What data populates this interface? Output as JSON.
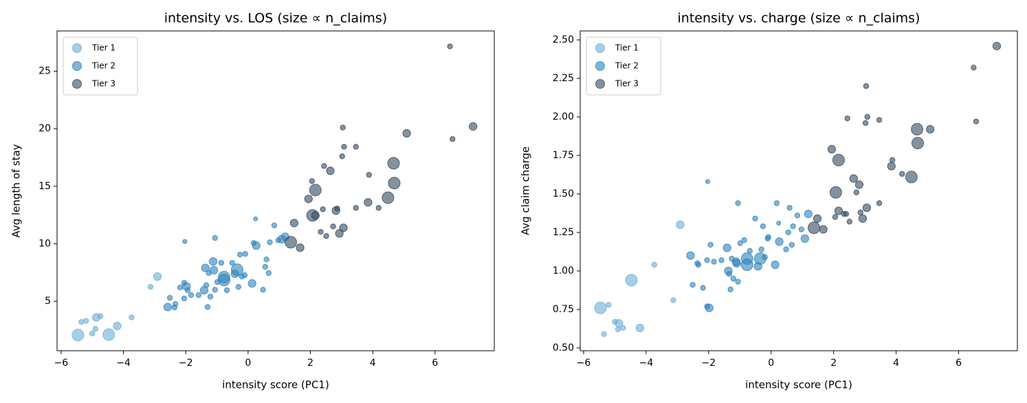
{
  "chart_data": [
    {
      "type": "scatter",
      "title": "intensity vs. LOS (size ∝ n_claims)",
      "xlabel": "intensity score (PC1)",
      "ylabel": "Avg length of stay",
      "xlim": [
        -6.13,
        7.9
      ],
      "ylim": [
        0.7,
        28.5
      ],
      "xticks": [
        {
          "value": -6,
          "label": "−6"
        },
        {
          "value": -4,
          "label": "−4"
        },
        {
          "value": -2,
          "label": "−2"
        },
        0,
        2,
        4,
        6
      ],
      "yticks": [
        5,
        10,
        15,
        20,
        25
      ],
      "legend": "upper left",
      "series": [
        {
          "name": "Tier 1",
          "color": "#6baed6",
          "x": [
            -5.46,
            -5.35,
            -5.2,
            -5.0,
            -4.9,
            -4.87,
            -4.74,
            -4.47,
            -4.2,
            -3.74,
            -3.13,
            -2.91
          ],
          "values": [
            2.07,
            3.2,
            3.3,
            2.2,
            2.6,
            3.6,
            3.7,
            2.1,
            2.85,
            3.6,
            6.25,
            7.15
          ],
          "sizes": [
            80,
            15,
            15,
            15,
            15,
            35,
            15,
            80,
            35,
            15,
            15,
            35
          ]
        },
        {
          "name": "Tier 2",
          "color": "#3182bd",
          "x": [
            -2.58,
            -2.51,
            -2.36,
            -2.33,
            -2.18,
            -2.05,
            -2.05,
            -2.03,
            -1.98,
            -1.94,
            -1.83,
            -1.59,
            -1.41,
            -1.37,
            -1.34,
            -1.3,
            -1.26,
            -1.21,
            -1.12,
            -1.1,
            -1.06,
            -1.06,
            -0.99,
            -0.86,
            -0.77,
            -0.77,
            -0.68,
            -0.51,
            -0.42,
            -0.35,
            -0.31,
            -0.26,
            -0.2,
            -0.11,
            -0.09,
            0.13,
            0.18,
            0.26,
            0.24,
            0.48,
            0.55,
            0.59,
            0.66,
            0.7,
            0.84,
            0.97,
            1.08,
            1.19
          ],
          "values": [
            4.5,
            5.3,
            4.46,
            4.76,
            6.2,
            6.6,
            5.24,
            10.2,
            6.3,
            5.96,
            5.54,
            5.54,
            5.96,
            7.9,
            6.4,
            4.5,
            7.45,
            5.4,
            8.46,
            7.7,
            10.5,
            6.0,
            6.67,
            8.34,
            7.1,
            6.85,
            5.96,
            8.34,
            7.39,
            7.75,
            6.25,
            9.06,
            7.15,
            7.27,
            9.12,
            6.55,
            10.07,
            9.84,
            12.16,
            6.0,
            7.99,
            8.64,
            7.45,
            10.13,
            11.6,
            10.3,
            10.4,
            10.6
          ],
          "sizes": [
            35,
            15,
            15,
            15,
            15,
            15,
            15,
            10,
            35,
            15,
            15,
            15,
            35,
            35,
            15,
            15,
            15,
            15,
            35,
            35,
            15,
            15,
            15,
            15,
            80,
            80,
            15,
            15,
            35,
            80,
            15,
            15,
            15,
            15,
            15,
            35,
            15,
            35,
            10,
            15,
            15,
            15,
            15,
            15,
            15,
            15,
            35,
            35
          ]
        },
        {
          "name": "Tier 3",
          "color": "#34495e",
          "x": [
            1.37,
            1.48,
            1.67,
            1.94,
            2.05,
            2.07,
            2.16,
            2.16,
            2.33,
            2.4,
            2.44,
            2.51,
            2.64,
            2.73,
            2.82,
            2.86,
            2.93,
            3.02,
            3.04,
            3.06,
            3.08,
            3.46,
            3.46,
            3.85,
            3.88,
            4.19,
            4.49,
            4.67,
            4.69,
            5.09,
            6.48,
            6.56,
            7.22
          ],
          "values": [
            10.13,
            11.8,
            9.66,
            13.9,
            15.45,
            12.46,
            14.67,
            12.46,
            11.03,
            13.0,
            16.76,
            10.67,
            16.34,
            11.5,
            12.88,
            13.06,
            10.9,
            17.6,
            20.1,
            11.39,
            18.43,
            13.12,
            18.43,
            13.6,
            15.99,
            13.12,
            14.0,
            17.0,
            15.27,
            19.6,
            27.15,
            19.1,
            20.2
          ],
          "sizes": [
            80,
            35,
            35,
            35,
            15,
            80,
            80,
            35,
            15,
            15,
            15,
            15,
            35,
            15,
            35,
            15,
            35,
            15,
            15,
            35,
            15,
            15,
            15,
            35,
            15,
            15,
            80,
            80,
            80,
            35,
            15,
            15,
            35
          ]
        }
      ]
    },
    {
      "type": "scatter",
      "title": "intensity vs. charge (size ∝ n_claims)",
      "xlabel": "intensity score (PC1)",
      "ylabel": "Avg claim charge",
      "xlim": [
        -6.11,
        7.88
      ],
      "ylim": [
        0.482,
        2.558
      ],
      "xticks": [
        {
          "value": -6,
          "label": "−6"
        },
        {
          "value": -4,
          "label": "−4"
        },
        {
          "value": -2,
          "label": "−2"
        },
        0,
        2,
        4,
        6
      ],
      "yticks": [
        {
          "value": 0.5,
          "label": "0.50"
        },
        0.75,
        {
          "value": 1.0,
          "label": "1.00"
        },
        1.25,
        {
          "value": 1.5,
          "label": "1.50"
        },
        1.75,
        {
          "value": 2.0,
          "label": "2.00"
        },
        2.25,
        {
          "value": 2.5,
          "label": "2.50"
        }
      ],
      "legend": "upper left",
      "series": [
        {
          "name": "Tier 1",
          "color": "#6baed6",
          "x": [
            -5.46,
            -5.35,
            -5.2,
            -5.0,
            -4.9,
            -4.87,
            -4.74,
            -4.47,
            -4.2,
            -3.74,
            -3.13,
            -2.91
          ],
          "values": [
            0.76,
            0.59,
            0.78,
            0.67,
            0.62,
            0.66,
            0.63,
            0.94,
            0.63,
            1.04,
            0.81,
            1.3
          ],
          "sizes": [
            80,
            15,
            15,
            15,
            15,
            35,
            15,
            80,
            35,
            15,
            15,
            35
          ]
        },
        {
          "name": "Tier 2",
          "color": "#3182bd",
          "x": [
            -2.58,
            -2.51,
            -2.36,
            -2.33,
            -2.18,
            -2.05,
            -2.05,
            -2.03,
            -1.98,
            -1.94,
            -1.83,
            -1.59,
            -1.41,
            -1.37,
            -1.34,
            -1.3,
            -1.26,
            -1.21,
            -1.12,
            -1.1,
            -1.06,
            -1.06,
            -0.99,
            -0.86,
            -0.77,
            -0.77,
            -0.68,
            -0.51,
            -0.42,
            -0.35,
            -0.31,
            -0.26,
            -0.2,
            -0.11,
            -0.09,
            0.13,
            0.18,
            0.26,
            0.24,
            0.48,
            0.55,
            0.59,
            0.66,
            0.7,
            0.84,
            0.97,
            1.08,
            1.19
          ],
          "values": [
            1.1,
            0.91,
            1.05,
            1.04,
            0.89,
            1.07,
            0.77,
            1.58,
            0.76,
            1.17,
            1.06,
            1.07,
            1.15,
            1.0,
            0.98,
            0.88,
            1.08,
            0.95,
            1.06,
            1.05,
            1.44,
            0.93,
            1.18,
            1.2,
            1.04,
            1.08,
            1.13,
            1.34,
            1.03,
            1.08,
            1.14,
            1.29,
            1.09,
            1.21,
            1.22,
            1.04,
            1.44,
            1.19,
            1.31,
            1.14,
            1.25,
            1.41,
            1.17,
            1.29,
            1.36,
            1.27,
            1.21,
            1.37
          ],
          "sizes": [
            35,
            15,
            15,
            15,
            15,
            15,
            15,
            10,
            35,
            15,
            15,
            15,
            35,
            35,
            15,
            15,
            15,
            15,
            35,
            35,
            15,
            15,
            15,
            15,
            80,
            80,
            15,
            15,
            35,
            80,
            15,
            15,
            15,
            15,
            15,
            35,
            15,
            35,
            10,
            15,
            15,
            15,
            15,
            15,
            15,
            15,
            35,
            35
          ]
        },
        {
          "name": "Tier 3",
          "color": "#34495e",
          "x": [
            1.37,
            1.48,
            1.67,
            1.94,
            2.05,
            2.07,
            2.16,
            2.16,
            2.33,
            2.4,
            2.44,
            2.51,
            2.64,
            2.73,
            2.82,
            2.86,
            2.93,
            3.02,
            3.04,
            3.06,
            3.08,
            3.46,
            3.46,
            3.85,
            3.88,
            4.19,
            4.49,
            4.67,
            4.69,
            5.09,
            6.48,
            6.56,
            7.22
          ],
          "values": [
            1.28,
            1.34,
            1.27,
            1.79,
            1.35,
            1.51,
            1.72,
            1.39,
            1.37,
            1.37,
            1.99,
            1.32,
            1.6,
            1.51,
            1.56,
            1.38,
            1.34,
            1.96,
            2.2,
            1.41,
            2.0,
            1.98,
            1.44,
            1.68,
            1.72,
            1.63,
            1.61,
            1.92,
            1.83,
            1.92,
            2.32,
            1.97,
            2.46
          ],
          "sizes": [
            80,
            35,
            35,
            35,
            15,
            80,
            80,
            35,
            15,
            15,
            15,
            15,
            35,
            15,
            35,
            15,
            35,
            15,
            15,
            35,
            15,
            15,
            15,
            35,
            15,
            15,
            80,
            80,
            80,
            35,
            15,
            15,
            35
          ]
        }
      ]
    }
  ]
}
